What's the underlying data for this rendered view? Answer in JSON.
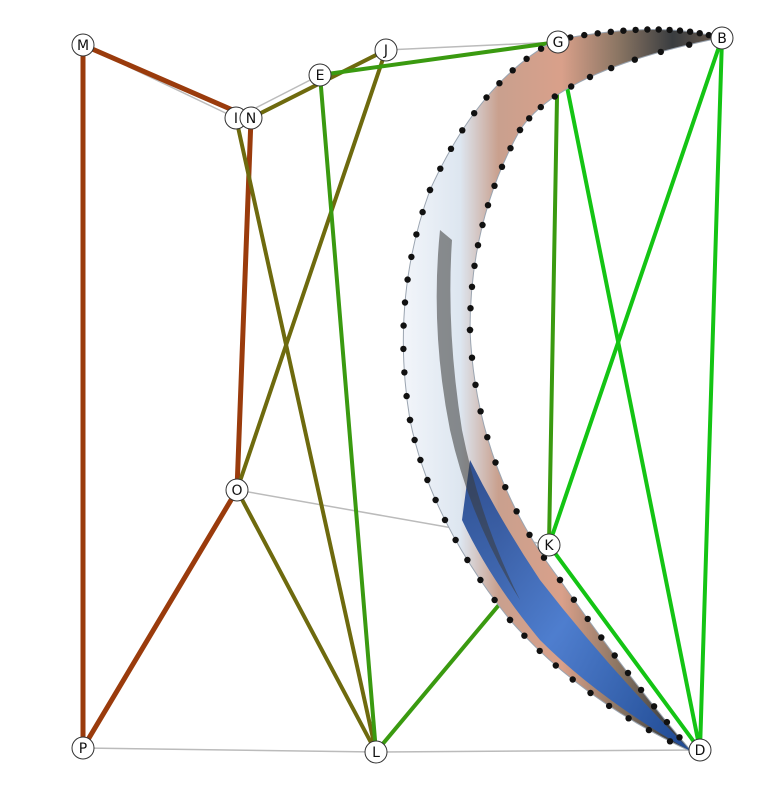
{
  "colors": {
    "background": "#ffffff",
    "thin_line": "#bbbbbb",
    "brown": "#9a3b0c",
    "olive": "#6e6a0e",
    "dark_green": "#3a9a10",
    "bright_green": "#14c414",
    "node_fill": "#ffffff",
    "node_stroke": "#333333",
    "control_dot": "#111111",
    "band_light": "#e8eef6",
    "band_skin": "#d9a08a",
    "band_mid": "#8a7563",
    "band_dark": "#2f3438",
    "band_blue": "#2d66c4"
  },
  "nodes": [
    {
      "id": "M",
      "label": "M"
    },
    {
      "id": "I",
      "label": "I"
    },
    {
      "id": "N",
      "label": "N"
    },
    {
      "id": "E",
      "label": "E"
    },
    {
      "id": "J",
      "label": "J"
    },
    {
      "id": "G",
      "label": "G"
    },
    {
      "id": "B",
      "label": "B"
    },
    {
      "id": "O",
      "label": "O"
    },
    {
      "id": "K",
      "label": "K"
    },
    {
      "id": "P",
      "label": "P"
    },
    {
      "id": "L",
      "label": "L"
    },
    {
      "id": "D",
      "label": "D"
    }
  ],
  "edges": [
    {
      "from": "M",
      "to": "I",
      "kind": "thin_line"
    },
    {
      "from": "I",
      "to": "E",
      "kind": "thin_line"
    },
    {
      "from": "J",
      "to": "G",
      "kind": "thin_line"
    },
    {
      "from": "O",
      "to": "K",
      "kind": "thin_line"
    },
    {
      "from": "P",
      "to": "L",
      "kind": "thin_line"
    },
    {
      "from": "L",
      "to": "D",
      "kind": "thin_line"
    },
    {
      "from": "M",
      "to": "P",
      "kind": "brown"
    },
    {
      "from": "M",
      "to": "N",
      "kind": "brown"
    },
    {
      "from": "N",
      "to": "O",
      "kind": "brown"
    },
    {
      "from": "O",
      "to": "P",
      "kind": "brown"
    },
    {
      "from": "N",
      "to": "J",
      "kind": "olive"
    },
    {
      "from": "J",
      "to": "O",
      "kind": "olive"
    },
    {
      "from": "I",
      "to": "L",
      "kind": "olive"
    },
    {
      "from": "O",
      "to": "L",
      "kind": "olive"
    },
    {
      "from": "E",
      "to": "G",
      "kind": "dark_green"
    },
    {
      "from": "E",
      "to": "L",
      "kind": "dark_green"
    },
    {
      "from": "L",
      "to": "K",
      "kind": "dark_green"
    },
    {
      "from": "G",
      "to": "K",
      "kind": "dark_green"
    },
    {
      "from": "G",
      "to": "D",
      "kind": "bright_green"
    },
    {
      "from": "B",
      "to": "K",
      "kind": "bright_green"
    },
    {
      "from": "B",
      "to": "D",
      "kind": "bright_green"
    },
    {
      "from": "K",
      "to": "D",
      "kind": "bright_green"
    }
  ]
}
